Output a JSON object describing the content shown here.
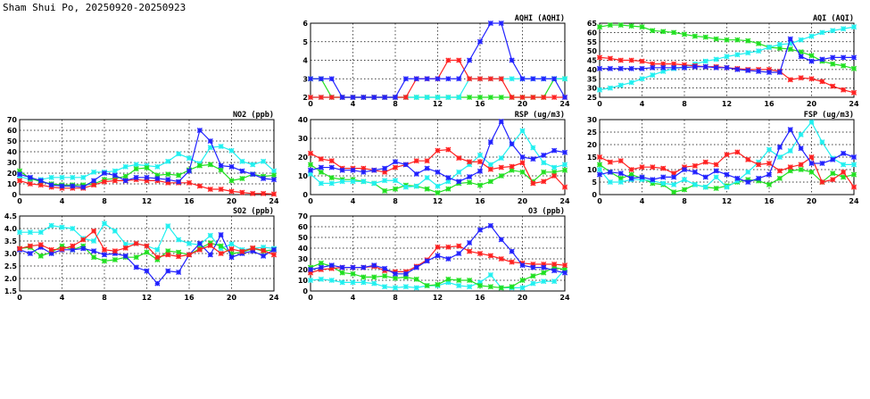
{
  "title": "Sham Shui Po, 20250920-20250923",
  "colors": {
    "red": "#ff2020",
    "green": "#20e020",
    "blue": "#2020ff",
    "cyan": "#20f0f0"
  },
  "chart_data": [
    {
      "id": "aqhi",
      "type": "line",
      "title": "AQHI (AQHI)",
      "ylim": [
        2,
        6
      ],
      "yticks": [
        "2",
        "3",
        "4",
        "5",
        "6"
      ],
      "xticks": [
        "0",
        "4",
        "8",
        "12",
        "16",
        "20",
        "24"
      ],
      "xlim": [
        0,
        24
      ],
      "grid": true,
      "series": [
        {
          "color": "green",
          "values": [
            3,
            3,
            2,
            2,
            2,
            2,
            2,
            2,
            2,
            2,
            2,
            2,
            2,
            2,
            2,
            2,
            2,
            2,
            2,
            2,
            2,
            2,
            2,
            3,
            3
          ]
        },
        {
          "color": "cyan",
          "values": [
            2,
            2,
            2,
            2,
            2,
            2,
            2,
            2,
            2,
            2,
            2,
            2,
            2,
            2,
            2,
            3,
            3,
            3,
            3,
            3,
            3,
            3,
            3,
            3,
            3
          ]
        },
        {
          "color": "red",
          "values": [
            2,
            2,
            2,
            2,
            2,
            2,
            2,
            2,
            2,
            2,
            3,
            3,
            3,
            4,
            4,
            3,
            3,
            3,
            3,
            2,
            2,
            2,
            2,
            2,
            2
          ]
        },
        {
          "color": "blue",
          "values": [
            3,
            3,
            3,
            2,
            2,
            2,
            2,
            2,
            2,
            3,
            3,
            3,
            3,
            3,
            3,
            4,
            5,
            6,
            6,
            4,
            3,
            3,
            3,
            3,
            2
          ]
        }
      ]
    },
    {
      "id": "aqi",
      "type": "line",
      "title": "AQI (AQI)",
      "ylim": [
        25,
        65
      ],
      "yticks": [
        "25",
        "30",
        "35",
        "40",
        "45",
        "50",
        "55",
        "60",
        "65"
      ],
      "xticks": [
        "0",
        "4",
        "8",
        "12",
        "16",
        "20",
        "24"
      ],
      "xlim": [
        0,
        24
      ],
      "grid": true,
      "series": [
        {
          "color": "green",
          "values": [
            63,
            64,
            64,
            63.5,
            63,
            61,
            60.5,
            60,
            59,
            58,
            57.5,
            56.5,
            56,
            56,
            55.5,
            54,
            52,
            51.5,
            51,
            49.5,
            47.5,
            44.5,
            43,
            42,
            40.5
          ]
        },
        {
          "color": "cyan",
          "values": [
            29,
            30,
            31.5,
            33,
            35,
            37,
            39,
            40.5,
            41.5,
            43,
            44.5,
            45.5,
            47,
            48,
            49,
            50,
            52,
            53.5,
            54,
            56,
            58,
            60,
            61,
            62,
            63
          ]
        },
        {
          "color": "red",
          "values": [
            46.5,
            46,
            45,
            45,
            44.5,
            43,
            43,
            43,
            42.5,
            42,
            41.5,
            41.5,
            41,
            40.5,
            40,
            40,
            40,
            39,
            34.5,
            35.5,
            35,
            33.5,
            31,
            29,
            27.5
          ]
        },
        {
          "color": "blue",
          "values": [
            40.5,
            40.5,
            40.5,
            40.5,
            40.5,
            41,
            41,
            41,
            41,
            41.5,
            41.5,
            41,
            41,
            40,
            39.5,
            39,
            38.5,
            38.5,
            56.5,
            47,
            44.5,
            45.5,
            46.5,
            46.5,
            46.5
          ]
        }
      ]
    },
    {
      "id": "no2",
      "type": "line",
      "title": "NO2 (ppb)",
      "ylim": [
        0,
        70
      ],
      "yticks": [
        "0",
        "10",
        "20",
        "30",
        "40",
        "50",
        "60",
        "70"
      ],
      "xticks": [
        "0",
        "4",
        "8",
        "12",
        "16",
        "20",
        "24"
      ],
      "xlim": [
        0,
        24
      ],
      "grid": true,
      "series": [
        {
          "color": "cyan",
          "values": [
            17,
            14,
            14,
            16,
            16,
            16,
            16,
            21,
            21,
            22,
            26,
            28,
            27,
            26,
            31,
            38,
            34,
            29,
            44,
            45,
            41,
            31,
            28,
            31,
            22
          ]
        },
        {
          "color": "green",
          "values": [
            22,
            15,
            12,
            10,
            9,
            9,
            9,
            10,
            14,
            15,
            17,
            24,
            25,
            18,
            19,
            18,
            23,
            27,
            28,
            23,
            13,
            15,
            19,
            17,
            18
          ]
        },
        {
          "color": "red",
          "values": [
            13,
            10,
            9,
            7,
            6,
            6,
            6,
            9,
            12,
            13,
            13,
            14,
            13,
            13,
            11,
            11,
            11,
            8,
            5,
            5,
            3,
            2,
            1,
            1,
            0.5
          ]
        },
        {
          "color": "blue",
          "values": [
            19,
            16,
            13,
            9,
            8,
            8,
            7,
            13,
            20,
            18,
            13,
            16,
            16,
            15,
            14,
            12,
            22,
            60,
            50,
            27,
            26,
            22,
            19,
            15,
            14
          ]
        }
      ]
    },
    {
      "id": "rsp",
      "type": "line",
      "title": "RSP (ug/m3)",
      "ylim": [
        0,
        40
      ],
      "yticks": [
        "0",
        "10",
        "20",
        "30",
        "40"
      ],
      "xticks": [
        "0",
        "4",
        "8",
        "12",
        "16",
        "20",
        "24"
      ],
      "xlim": [
        0,
        24
      ],
      "grid": true,
      "series": [
        {
          "color": "green",
          "values": [
            16,
            12,
            9,
            8,
            8,
            7,
            6,
            2,
            3,
            5,
            4.5,
            3,
            1,
            3,
            6,
            6.5,
            5,
            7,
            10,
            13,
            12,
            7,
            12,
            12,
            13
          ]
        },
        {
          "color": "cyan",
          "values": [
            11,
            6,
            6,
            7,
            7,
            7,
            6,
            7.5,
            7.5,
            4,
            4.5,
            9,
            4.5,
            7,
            12,
            16,
            21,
            16,
            19.5,
            27,
            34,
            25,
            17,
            14.5,
            16
          ]
        },
        {
          "color": "red",
          "values": [
            22,
            19,
            18,
            14,
            14,
            14,
            13,
            12,
            14.5,
            16,
            18,
            18,
            23.5,
            24,
            19.5,
            17.5,
            17.5,
            13.5,
            14.5,
            15,
            17,
            6,
            7,
            10,
            4
          ]
        },
        {
          "color": "blue",
          "values": [
            13,
            14.5,
            14.5,
            13,
            13,
            12,
            13,
            14,
            17.5,
            16,
            11,
            14,
            12,
            9,
            7,
            9.5,
            12.5,
            28,
            39,
            27,
            20,
            19,
            21,
            23.5,
            22.5
          ]
        }
      ]
    },
    {
      "id": "fsp",
      "type": "line",
      "title": "FSP (ug/m3)",
      "ylim": [
        0,
        30
      ],
      "yticks": [
        "0",
        "5",
        "10",
        "15",
        "20",
        "25",
        "30"
      ],
      "xticks": [
        "0",
        "4",
        "8",
        "12",
        "16",
        "20",
        "24"
      ],
      "xlim": [
        0,
        24
      ],
      "grid": true,
      "series": [
        {
          "color": "green",
          "values": [
            12,
            9,
            6.5,
            8,
            6.5,
            4.5,
            4,
            1,
            2,
            4,
            3,
            2.5,
            3.5,
            5,
            6,
            5.5,
            4,
            6.5,
            9.5,
            10,
            9,
            5,
            8.5,
            7,
            8
          ]
        },
        {
          "color": "cyan",
          "values": [
            10,
            5,
            5,
            6,
            6,
            5.5,
            4.5,
            4,
            6,
            4,
            3,
            7,
            3,
            5.5,
            9,
            13,
            18,
            15,
            17.5,
            24,
            29,
            21,
            14.5,
            12,
            12
          ]
        },
        {
          "color": "red",
          "values": [
            15,
            13,
            13.5,
            10,
            11,
            11,
            10.5,
            8.5,
            11,
            11.5,
            13,
            12,
            16,
            17,
            14,
            12,
            12.5,
            9.5,
            11,
            12,
            15,
            5,
            6,
            9,
            3
          ]
        },
        {
          "color": "blue",
          "values": [
            8,
            9,
            8.5,
            6.5,
            7,
            6,
            7,
            7,
            10,
            9,
            7,
            9.5,
            8,
            6.5,
            5,
            6.5,
            8,
            19,
            26,
            18.5,
            12.5,
            12.5,
            14,
            16.5,
            15
          ]
        }
      ]
    },
    {
      "id": "so2",
      "type": "line",
      "title": "SO2 (ppb)",
      "ylim": [
        1.5,
        4.5
      ],
      "yticks": [
        "1.5",
        "2.0",
        "2.5",
        "3.0",
        "3.5",
        "4.0",
        "4.5"
      ],
      "xticks": [
        "0",
        "4",
        "8",
        "12",
        "16",
        "20",
        "24"
      ],
      "xlim": [
        0,
        24
      ],
      "grid": true,
      "series": [
        {
          "color": "cyan",
          "values": [
            3.85,
            3.85,
            3.85,
            4.12,
            4.05,
            4.0,
            3.6,
            3.5,
            4.2,
            3.9,
            3.37,
            3.4,
            3.3,
            3.15,
            4.1,
            3.55,
            3.4,
            3.35,
            3.72,
            3.2,
            3.38,
            3.15,
            3.2,
            3.25,
            3.2
          ]
        },
        {
          "color": "green",
          "values": [
            3.2,
            3.25,
            2.9,
            3.05,
            3.3,
            3.15,
            3.3,
            2.85,
            2.7,
            2.75,
            2.85,
            2.85,
            3.05,
            2.75,
            3.1,
            3.05,
            2.95,
            3.2,
            3.42,
            3.3,
            3.0,
            3.05,
            3.2,
            3.1,
            3.15
          ]
        },
        {
          "color": "blue",
          "values": [
            3.15,
            3.0,
            3.25,
            3.0,
            3.15,
            3.15,
            3.2,
            3.1,
            2.95,
            3.0,
            2.9,
            2.45,
            2.3,
            1.8,
            2.3,
            2.25,
            2.95,
            3.4,
            2.95,
            3.75,
            2.85,
            3.0,
            3.1,
            2.9,
            3.15
          ]
        },
        {
          "color": "red",
          "values": [
            3.2,
            3.3,
            3.35,
            3.15,
            3.18,
            3.3,
            3.55,
            3.9,
            3.15,
            3.1,
            3.22,
            3.4,
            3.3,
            2.85,
            2.95,
            2.88,
            2.95,
            3.15,
            3.32,
            3.0,
            3.18,
            3.08,
            3.22,
            3.12,
            2.95
          ]
        }
      ]
    },
    {
      "id": "o3",
      "type": "line",
      "title": "O3 (ppb)",
      "ylim": [
        0,
        70
      ],
      "yticks": [
        "0",
        "10",
        "20",
        "30",
        "40",
        "50",
        "60",
        "70"
      ],
      "xticks": [
        "0",
        "4",
        "8",
        "12",
        "16",
        "20",
        "24"
      ],
      "xlim": [
        0,
        24
      ],
      "grid": true,
      "series": [
        {
          "color": "cyan",
          "values": [
            10,
            11,
            10,
            8,
            8,
            8,
            7,
            4,
            3,
            4,
            3,
            5,
            5,
            8,
            5,
            4,
            8,
            15,
            3,
            3,
            3,
            7,
            9,
            9,
            20
          ]
        },
        {
          "color": "green",
          "values": [
            22,
            26,
            23,
            17,
            16,
            13,
            13,
            14,
            12,
            13,
            11,
            5,
            6,
            11,
            10,
            10,
            5,
            4,
            3,
            4,
            10,
            14,
            17,
            22,
            20
          ]
        },
        {
          "color": "red",
          "values": [
            17,
            20,
            21,
            22,
            22,
            22,
            23,
            19,
            18,
            18,
            23,
            29,
            41,
            41,
            42,
            37,
            35,
            33,
            30,
            27,
            26,
            25,
            25,
            25,
            24
          ]
        },
        {
          "color": "blue",
          "values": [
            20,
            22,
            24,
            22,
            22,
            22,
            24,
            21,
            16,
            16,
            22,
            28,
            33,
            30,
            35,
            45,
            57,
            61,
            48,
            37,
            24,
            22,
            22,
            19,
            17
          ]
        }
      ]
    }
  ]
}
